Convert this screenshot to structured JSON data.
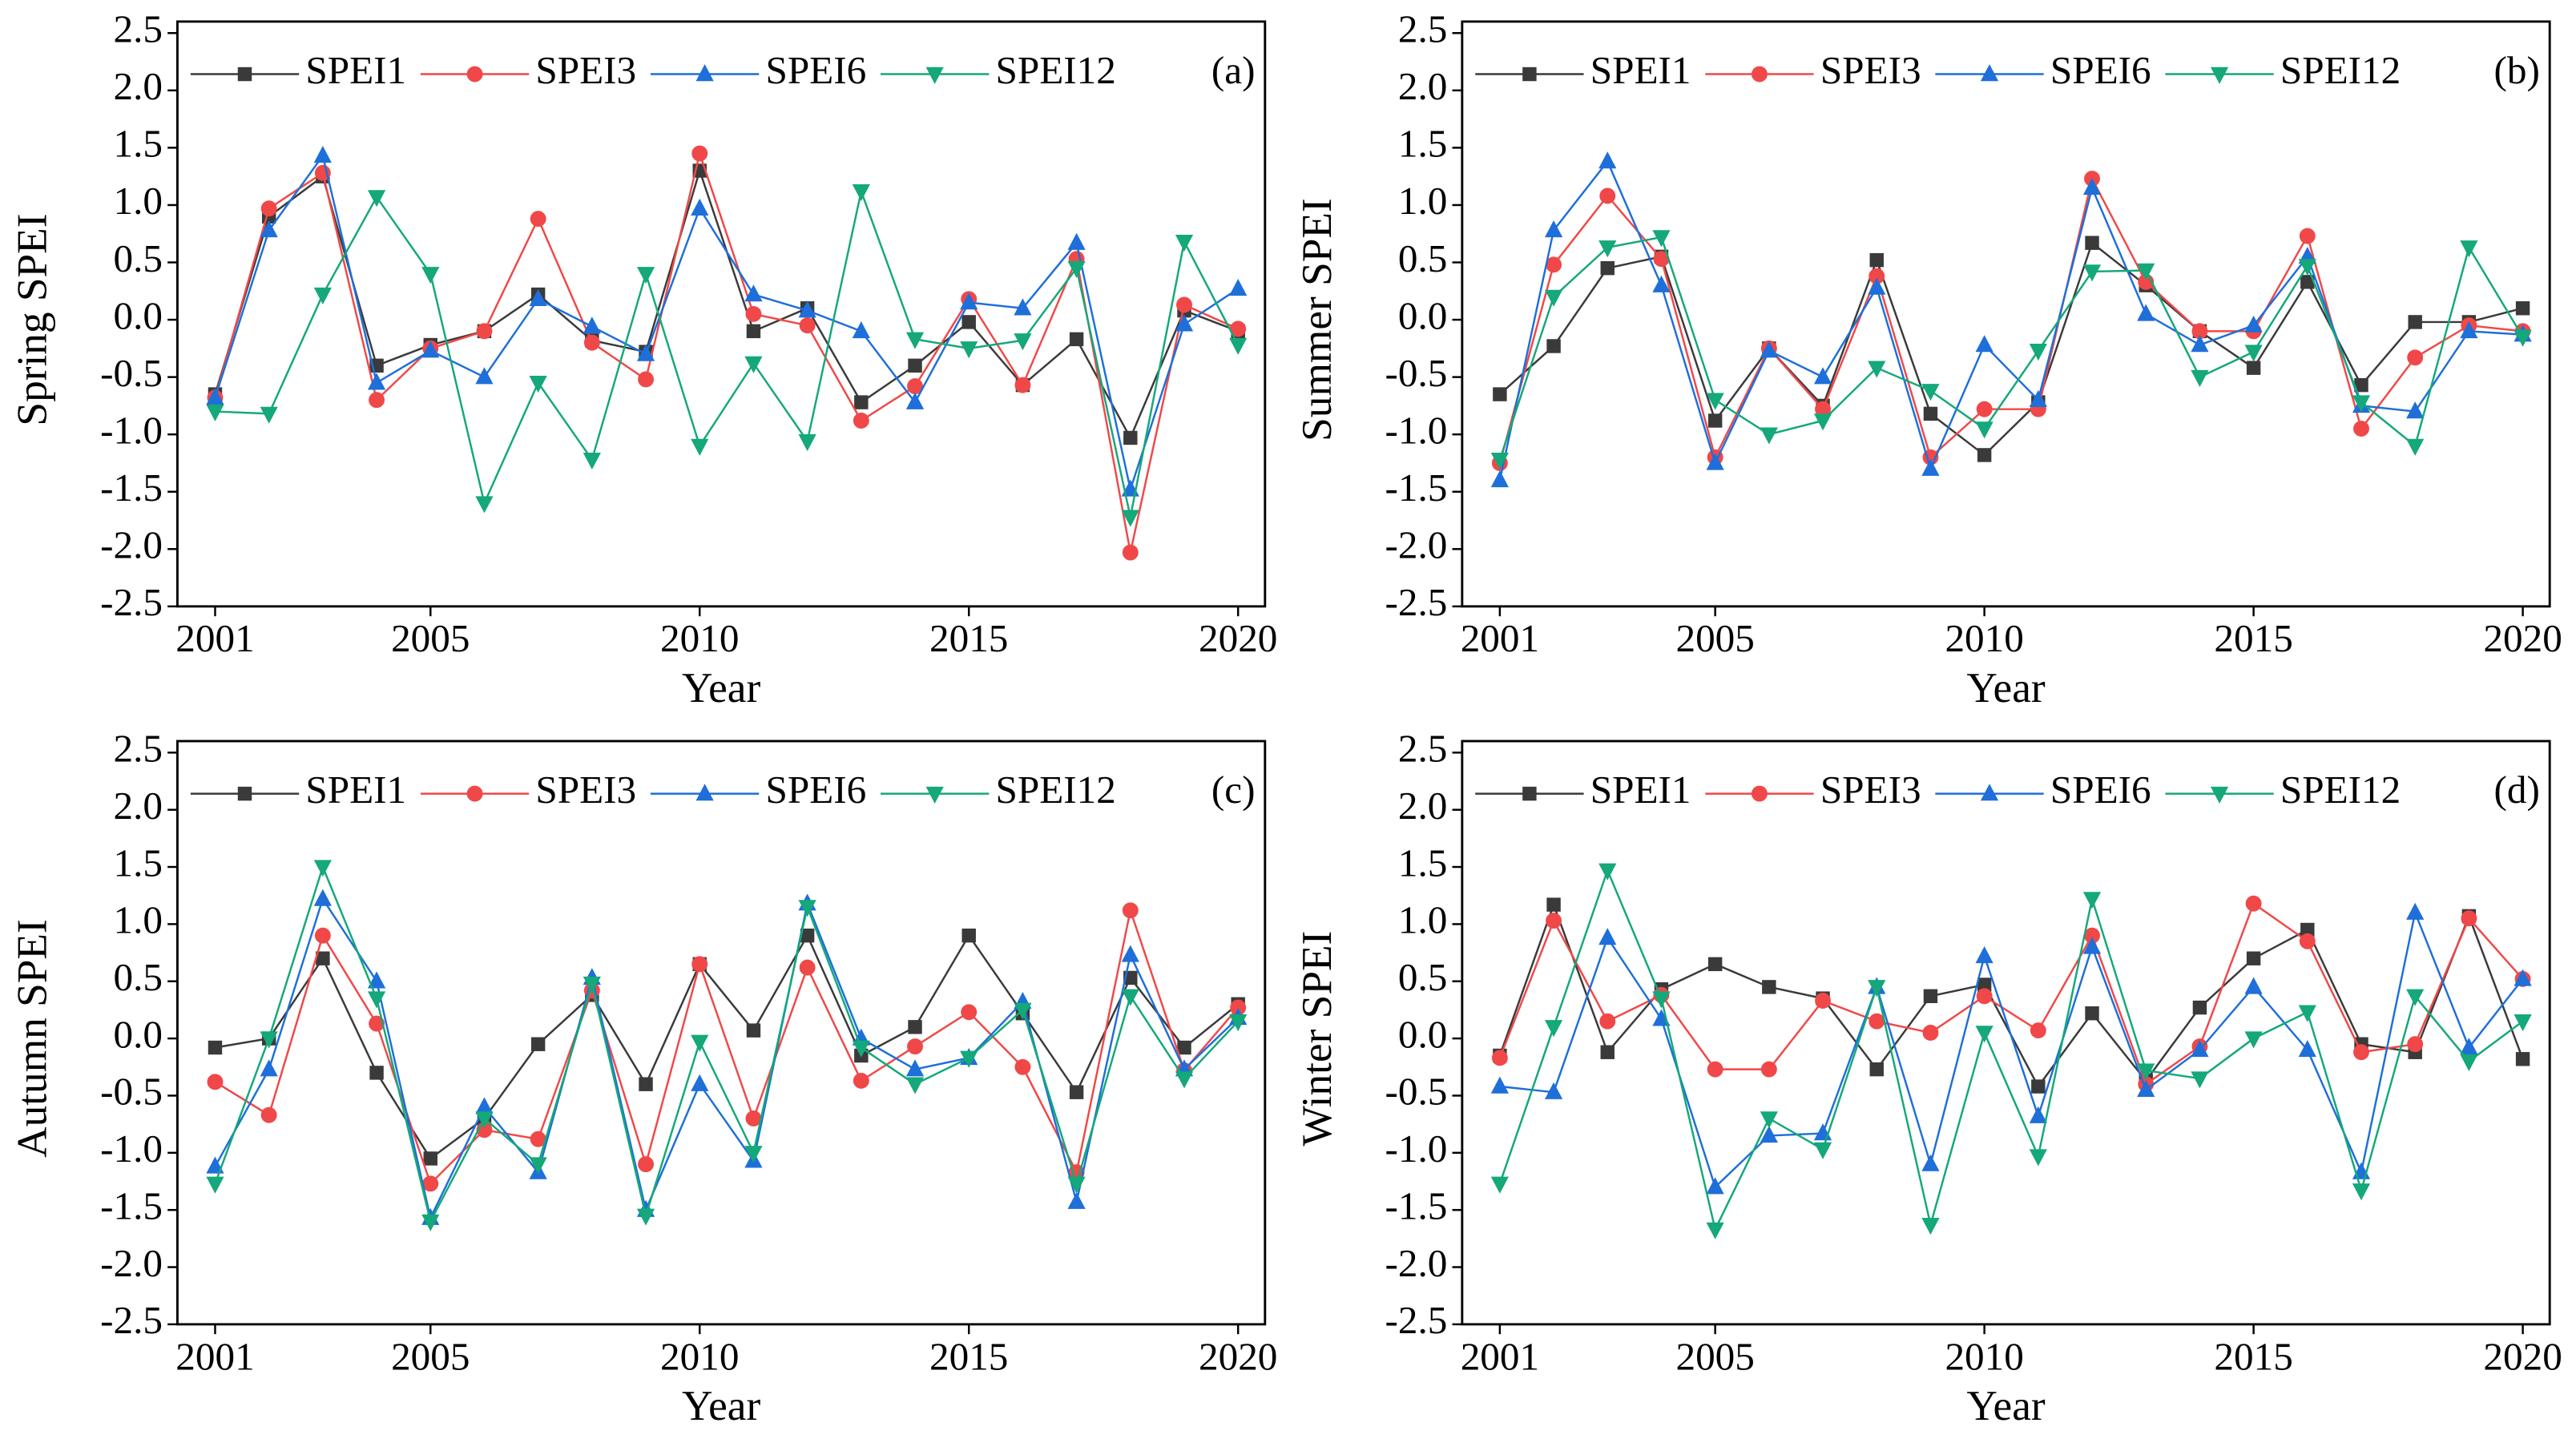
{
  "chart_data": [
    {
      "type": "line",
      "panel": "(a)",
      "ylabel": "Spring SPEI",
      "xlabel": "Year",
      "x": [
        2001,
        2002,
        2003,
        2004,
        2005,
        2006,
        2007,
        2008,
        2009,
        2010,
        2011,
        2012,
        2013,
        2014,
        2015,
        2016,
        2017,
        2018,
        2019,
        2020
      ],
      "xlim": [
        2000.3,
        2020.5
      ],
      "xticks": [
        2001,
        2005,
        2010,
        2015,
        2020
      ],
      "ylim": [
        -2.5,
        2.5
      ],
      "yticks": [
        -2.5,
        {
          "value": -2,
          "label": "-2.0"
        },
        -1.5,
        {
          "value": -1,
          "label": "-1.0"
        },
        -0.5,
        {
          "value": 0,
          "label": "0.0"
        },
        0.5,
        {
          "value": 1,
          "label": "1.0"
        },
        1.5,
        {
          "value": 2,
          "label": "2.0"
        },
        2.5
      ],
      "series": [
        {
          "name": "SPEI1",
          "color": "#3a3a3a",
          "marker": "square",
          "values": [
            -0.65,
            0.9,
            1.25,
            -0.4,
            -0.22,
            -0.1,
            0.22,
            -0.18,
            -0.28,
            1.3,
            -0.1,
            0.1,
            -0.72,
            -0.4,
            -0.02,
            -0.57,
            -0.17,
            -1.03,
            0.08,
            -0.1
          ]
        },
        {
          "name": "SPEI3",
          "color": "#f04848",
          "marker": "circle",
          "values": [
            -0.68,
            0.97,
            1.28,
            -0.7,
            -0.25,
            -0.1,
            0.88,
            -0.2,
            -0.52,
            1.45,
            0.05,
            -0.05,
            -0.88,
            -0.58,
            0.18,
            -0.57,
            0.53,
            -2.03,
            0.13,
            -0.08
          ]
        },
        {
          "name": "SPEI6",
          "color": "#1e6fd9",
          "marker": "triangle-up",
          "values": [
            -0.68,
            0.78,
            1.43,
            -0.55,
            -0.27,
            -0.5,
            0.18,
            -0.06,
            -0.3,
            0.97,
            0.22,
            0.08,
            -0.1,
            -0.72,
            0.15,
            0.1,
            0.67,
            -1.48,
            -0.04,
            0.27
          ]
        },
        {
          "name": "SPEI12",
          "color": "#14a87a",
          "marker": "triangle-down",
          "values": [
            -0.8,
            -0.82,
            0.22,
            1.07,
            0.4,
            -1.6,
            -0.55,
            -1.22,
            0.4,
            -1.1,
            -0.38,
            -1.06,
            1.12,
            -0.17,
            -0.25,
            -0.18,
            0.45,
            -1.72,
            0.68,
            -0.22
          ]
        }
      ]
    },
    {
      "type": "line",
      "panel": "(b)",
      "ylabel": "Summer SPEI",
      "xlabel": "Year",
      "x": [
        2001,
        2002,
        2003,
        2004,
        2005,
        2006,
        2007,
        2008,
        2009,
        2010,
        2011,
        2012,
        2013,
        2014,
        2015,
        2016,
        2017,
        2018,
        2019,
        2020
      ],
      "xlim": [
        2000.3,
        2020.5
      ],
      "xticks": [
        2001,
        2005,
        2010,
        2015,
        2020
      ],
      "ylim": [
        -2.5,
        2.5
      ],
      "yticks": [
        -2.5,
        {
          "value": -2,
          "label": "-2.0"
        },
        -1.5,
        {
          "value": -1,
          "label": "-1.0"
        },
        -0.5,
        {
          "value": 0,
          "label": "0.0"
        },
        0.5,
        {
          "value": 1,
          "label": "1.0"
        },
        1.5,
        {
          "value": 2,
          "label": "2.0"
        },
        2.5
      ],
      "series": [
        {
          "name": "SPEI1",
          "color": "#3a3a3a",
          "marker": "square",
          "values": [
            -0.65,
            -0.23,
            0.45,
            0.55,
            -0.88,
            -0.25,
            -0.75,
            0.52,
            -0.82,
            -1.18,
            -0.72,
            0.67,
            0.3,
            -0.1,
            -0.42,
            0.33,
            -0.57,
            -0.02,
            -0.02,
            0.1
          ]
        },
        {
          "name": "SPEI3",
          "color": "#f04848",
          "marker": "circle",
          "values": [
            -1.25,
            0.48,
            1.08,
            0.53,
            -1.2,
            -0.25,
            -0.78,
            0.38,
            -1.2,
            -0.78,
            -0.78,
            1.23,
            0.33,
            -0.1,
            -0.1,
            0.73,
            -0.95,
            -0.33,
            -0.05,
            -0.1
          ]
        },
        {
          "name": "SPEI6",
          "color": "#1e6fd9",
          "marker": "triangle-up",
          "values": [
            -1.4,
            0.78,
            1.38,
            0.3,
            -1.25,
            -0.27,
            -0.5,
            0.28,
            -1.3,
            -0.22,
            -0.7,
            1.15,
            0.05,
            -0.22,
            -0.05,
            0.55,
            -0.75,
            -0.8,
            -0.1,
            -0.13
          ]
        },
        {
          "name": "SPEI12",
          "color": "#14a87a",
          "marker": "triangle-down",
          "values": [
            -1.22,
            0.2,
            0.63,
            0.72,
            -0.7,
            -1.0,
            -0.88,
            -0.42,
            -0.62,
            -0.95,
            -0.27,
            0.42,
            0.43,
            -0.5,
            -0.28,
            0.47,
            -0.72,
            -1.1,
            0.63,
            -0.15
          ]
        }
      ]
    },
    {
      "type": "line",
      "panel": "(c)",
      "ylabel": "Autumn SPEI",
      "xlabel": "Year",
      "x": [
        2001,
        2002,
        2003,
        2004,
        2005,
        2006,
        2007,
        2008,
        2009,
        2010,
        2011,
        2012,
        2013,
        2014,
        2015,
        2016,
        2017,
        2018,
        2019,
        2020
      ],
      "xlim": [
        2000.3,
        2020.5
      ],
      "xticks": [
        2001,
        2005,
        2010,
        2015,
        2020
      ],
      "ylim": [
        -2.5,
        2.5
      ],
      "yticks": [
        -2.5,
        {
          "value": -2,
          "label": "-2.0"
        },
        -1.5,
        {
          "value": -1,
          "label": "-1.0"
        },
        -0.5,
        {
          "value": 0,
          "label": "0.0"
        },
        0.5,
        {
          "value": 1,
          "label": "1.0"
        },
        1.5,
        {
          "value": 2,
          "label": "2.0"
        },
        2.5
      ],
      "series": [
        {
          "name": "SPEI1",
          "color": "#3a3a3a",
          "marker": "square",
          "values": [
            -0.08,
            0.0,
            0.7,
            -0.3,
            -1.05,
            -0.7,
            -0.05,
            0.38,
            -0.4,
            0.65,
            0.07,
            0.9,
            -0.15,
            0.1,
            0.9,
            0.22,
            -0.47,
            0.53,
            -0.08,
            0.3
          ]
        },
        {
          "name": "SPEI3",
          "color": "#f04848",
          "marker": "circle",
          "values": [
            -0.38,
            -0.67,
            0.9,
            0.13,
            -1.27,
            -0.8,
            -0.88,
            0.42,
            -1.1,
            0.65,
            -0.7,
            0.62,
            -0.37,
            -0.07,
            0.23,
            -0.25,
            -1.17,
            1.12,
            -0.28,
            0.27
          ]
        },
        {
          "name": "SPEI6",
          "color": "#1e6fd9",
          "marker": "triangle-up",
          "values": [
            -1.12,
            -0.27,
            1.22,
            0.5,
            -1.57,
            -0.6,
            -1.17,
            0.53,
            -1.5,
            -0.4,
            -1.07,
            1.18,
            0.0,
            -0.27,
            -0.17,
            0.32,
            -1.43,
            0.73,
            -0.27,
            0.18
          ]
        },
        {
          "name": "SPEI12",
          "color": "#14a87a",
          "marker": "triangle-down",
          "values": [
            -1.27,
            0.0,
            1.5,
            0.35,
            -1.6,
            -0.7,
            -1.1,
            0.48,
            -1.55,
            -0.03,
            -1.0,
            1.15,
            -0.08,
            -0.4,
            -0.17,
            0.25,
            -1.27,
            0.37,
            -0.35,
            0.15
          ]
        }
      ]
    },
    {
      "type": "line",
      "panel": "(d)",
      "ylabel": "Winter SPEI",
      "xlabel": "Year",
      "x": [
        2001,
        2002,
        2003,
        2004,
        2005,
        2006,
        2007,
        2008,
        2009,
        2010,
        2011,
        2012,
        2013,
        2014,
        2015,
        2016,
        2017,
        2018,
        2019,
        2020
      ],
      "xlim": [
        2000.3,
        2020.5
      ],
      "xticks": [
        2001,
        2005,
        2010,
        2015,
        2020
      ],
      "ylim": [
        -2.5,
        2.5
      ],
      "yticks": [
        -2.5,
        {
          "value": -2,
          "label": "-2.0"
        },
        -1.5,
        {
          "value": -1,
          "label": "-1.0"
        },
        -0.5,
        {
          "value": 0,
          "label": "0.0"
        },
        0.5,
        {
          "value": 1,
          "label": "1.0"
        },
        1.5,
        {
          "value": 2,
          "label": "2.0"
        },
        2.5
      ],
      "series": [
        {
          "name": "SPEI1",
          "color": "#3a3a3a",
          "marker": "square",
          "values": [
            -0.15,
            1.17,
            -0.12,
            0.43,
            0.65,
            0.45,
            0.35,
            -0.27,
            0.37,
            0.47,
            -0.42,
            0.22,
            -0.37,
            0.27,
            0.7,
            0.95,
            -0.05,
            -0.12,
            1.07,
            -0.18
          ]
        },
        {
          "name": "SPEI3",
          "color": "#f04848",
          "marker": "circle",
          "values": [
            -0.17,
            1.03,
            0.15,
            0.38,
            -0.27,
            -0.27,
            0.33,
            0.15,
            0.05,
            0.37,
            0.07,
            0.9,
            -0.4,
            -0.07,
            1.18,
            0.85,
            -0.12,
            -0.05,
            1.05,
            0.52
          ]
        },
        {
          "name": "SPEI6",
          "color": "#1e6fd9",
          "marker": "triangle-up",
          "values": [
            -0.42,
            -0.47,
            0.88,
            0.17,
            -1.3,
            -0.85,
            -0.83,
            0.45,
            -1.1,
            0.72,
            -0.68,
            0.8,
            -0.45,
            -0.1,
            0.45,
            -0.1,
            -1.17,
            1.1,
            -0.08,
            0.52
          ]
        },
        {
          "name": "SPEI12",
          "color": "#14a87a",
          "marker": "triangle-down",
          "values": [
            -1.27,
            0.1,
            1.47,
            0.35,
            -1.67,
            -0.7,
            -0.97,
            0.45,
            -1.63,
            0.05,
            -1.03,
            1.22,
            -0.28,
            -0.35,
            0.0,
            0.23,
            -1.33,
            0.37,
            -0.2,
            0.15
          ]
        }
      ]
    }
  ]
}
